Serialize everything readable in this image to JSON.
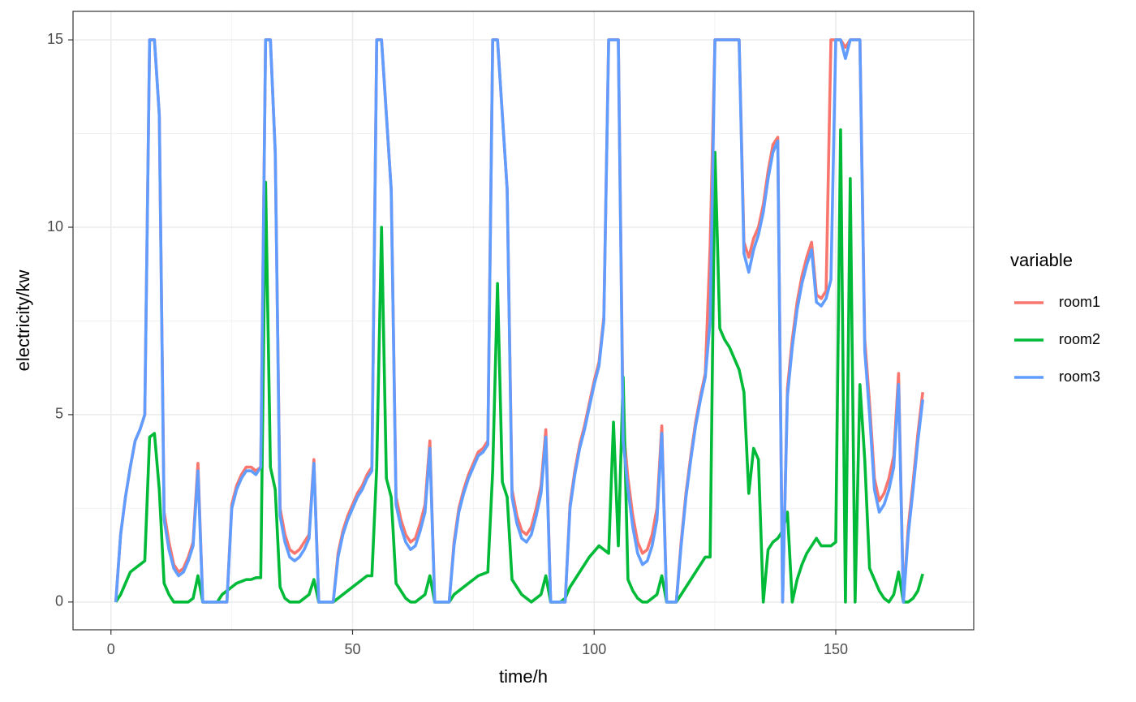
{
  "chart_data": {
    "type": "line",
    "x_label": "time/h",
    "y_label": "electricity/kw",
    "legend_title": "variable",
    "xlim": [
      -7.85,
      178.55
    ],
    "ylim": [
      -0.74,
      15.76
    ],
    "xticks": [
      0,
      50,
      100,
      150
    ],
    "yticks": [
      0,
      5,
      10,
      15
    ],
    "xminor": [
      25,
      75,
      125
    ],
    "yminor": [
      2.5,
      7.5,
      12.5
    ],
    "grid": true,
    "legend": "right",
    "x": [
      1,
      2,
      3,
      4,
      5,
      6,
      7,
      8,
      9,
      10,
      11,
      12,
      13,
      14,
      15,
      16,
      17,
      18,
      19,
      20,
      21,
      22,
      23,
      24,
      25,
      26,
      27,
      28,
      29,
      30,
      31,
      32,
      33,
      34,
      35,
      36,
      37,
      38,
      39,
      40,
      41,
      42,
      43,
      44,
      45,
      46,
      47,
      48,
      49,
      50,
      51,
      52,
      53,
      54,
      55,
      56,
      57,
      58,
      59,
      60,
      61,
      62,
      63,
      64,
      65,
      66,
      67,
      68,
      69,
      70,
      71,
      72,
      73,
      74,
      75,
      76,
      77,
      78,
      79,
      80,
      81,
      82,
      83,
      84,
      85,
      86,
      87,
      88,
      89,
      90,
      91,
      92,
      93,
      94,
      95,
      96,
      97,
      98,
      99,
      100,
      101,
      102,
      103,
      104,
      105,
      106,
      107,
      108,
      109,
      110,
      111,
      112,
      113,
      114,
      115,
      116,
      117,
      118,
      119,
      120,
      121,
      122,
      123,
      124,
      125,
      126,
      127,
      128,
      129,
      130,
      131,
      132,
      133,
      134,
      135,
      136,
      137,
      138,
      139,
      140,
      141,
      142,
      143,
      144,
      145,
      146,
      147,
      148,
      149,
      150,
      151,
      152,
      153,
      154,
      155,
      156,
      157,
      158,
      159,
      160,
      161,
      162,
      163,
      164,
      165,
      166,
      167,
      168
    ],
    "series": [
      {
        "name": "room1",
        "color": "#F8766D",
        "values": [
          0,
          1.8,
          2.8,
          3.6,
          4.3,
          4.6,
          5.0,
          15,
          15,
          13,
          2.4,
          1.6,
          1.0,
          0.8,
          0.9,
          1.2,
          1.6,
          3.7,
          0,
          0,
          0,
          0,
          0,
          0,
          2.6,
          3.1,
          3.4,
          3.6,
          3.6,
          3.5,
          3.6,
          15,
          15,
          12,
          2.5,
          1.8,
          1.4,
          1.3,
          1.4,
          1.6,
          1.8,
          3.8,
          0,
          0,
          0,
          0,
          1.3,
          1.9,
          2.3,
          2.6,
          2.9,
          3.1,
          3.4,
          3.6,
          15,
          15,
          13,
          11,
          2.8,
          2.2,
          1.8,
          1.6,
          1.7,
          2.1,
          2.6,
          4.3,
          0,
          0,
          0,
          0,
          1.6,
          2.5,
          3.0,
          3.4,
          3.7,
          4.0,
          4.1,
          4.3,
          15,
          15,
          13,
          11,
          3.0,
          2.3,
          1.9,
          1.8,
          2.0,
          2.5,
          3.1,
          4.6,
          0,
          0,
          0,
          0,
          2.6,
          3.5,
          4.2,
          4.7,
          5.3,
          5.9,
          6.4,
          7.6,
          15,
          15,
          15,
          4.7,
          3.3,
          2.3,
          1.6,
          1.3,
          1.4,
          1.8,
          2.5,
          4.7,
          0,
          0,
          0,
          1.6,
          2.9,
          3.9,
          4.8,
          5.5,
          6.1,
          9.5,
          15,
          15,
          15,
          15,
          15,
          15,
          9.6,
          9.2,
          9.7,
          10.0,
          10.6,
          11.5,
          12.2,
          12.4,
          0,
          5.7,
          7.0,
          8.0,
          8.7,
          9.2,
          9.6,
          8.2,
          8.1,
          8.3,
          15,
          15,
          15,
          14.8,
          15,
          15,
          15,
          7.0,
          5.3,
          3.3,
          2.7,
          2.9,
          3.3,
          3.9,
          6.1,
          0,
          2.0,
          3.2,
          4.5,
          5.6
        ]
      },
      {
        "name": "room2",
        "color": "#00BA38",
        "values": [
          0,
          0.2,
          0.5,
          0.8,
          0.9,
          1.0,
          1.1,
          4.4,
          4.5,
          3.0,
          0.5,
          0.2,
          0,
          0,
          0,
          0,
          0.1,
          0.7,
          0,
          0,
          0,
          0,
          0.2,
          0.3,
          0.4,
          0.5,
          0.55,
          0.6,
          0.6,
          0.65,
          0.65,
          11.2,
          3.6,
          3.0,
          0.4,
          0.1,
          0,
          0,
          0,
          0.1,
          0.2,
          0.6,
          0,
          0,
          0,
          0,
          0.1,
          0.2,
          0.3,
          0.4,
          0.5,
          0.6,
          0.7,
          0.7,
          3.6,
          10,
          3.3,
          2.8,
          0.5,
          0.3,
          0.1,
          0,
          0,
          0.1,
          0.2,
          0.7,
          0,
          0,
          0,
          0,
          0.2,
          0.3,
          0.4,
          0.5,
          0.6,
          0.7,
          0.75,
          0.8,
          3.5,
          8.5,
          3.2,
          2.8,
          0.6,
          0.4,
          0.2,
          0.1,
          0,
          0.1,
          0.2,
          0.7,
          0,
          0,
          0,
          0.1,
          0.4,
          0.6,
          0.8,
          1.0,
          1.2,
          1.35,
          1.5,
          1.4,
          1.3,
          4.8,
          1.5,
          6.0,
          0.6,
          0.3,
          0.1,
          0,
          0,
          0.1,
          0.2,
          0.7,
          0,
          0,
          0,
          0.2,
          0.4,
          0.6,
          0.8,
          1.0,
          1.2,
          1.2,
          12.0,
          7.3,
          7.0,
          6.8,
          6.5,
          6.2,
          5.6,
          2.9,
          4.1,
          3.8,
          0,
          1.4,
          1.6,
          1.7,
          1.9,
          2.4,
          0,
          0.6,
          1.0,
          1.3,
          1.5,
          1.7,
          1.5,
          1.5,
          1.5,
          1.6,
          12.6,
          0,
          11.3,
          0,
          5.8,
          3.8,
          0.9,
          0.6,
          0.3,
          0.1,
          0,
          0.2,
          0.8,
          0,
          0,
          0.1,
          0.3,
          0.75
        ]
      },
      {
        "name": "room3",
        "color": "#619CFF",
        "values": [
          0,
          1.8,
          2.8,
          3.6,
          4.3,
          4.6,
          5.0,
          15,
          15,
          13,
          2.2,
          1.4,
          0.9,
          0.7,
          0.8,
          1.1,
          1.5,
          3.5,
          0,
          0,
          0,
          0,
          0,
          0,
          2.5,
          3.0,
          3.3,
          3.5,
          3.5,
          3.4,
          3.6,
          15,
          15,
          12,
          2.3,
          1.6,
          1.2,
          1.1,
          1.2,
          1.4,
          1.7,
          3.7,
          0,
          0,
          0,
          0,
          1.2,
          1.8,
          2.2,
          2.5,
          2.8,
          3.0,
          3.3,
          3.5,
          15,
          15,
          13,
          11,
          2.6,
          2.0,
          1.6,
          1.4,
          1.5,
          1.9,
          2.4,
          4.1,
          0,
          0,
          0,
          0,
          1.5,
          2.4,
          2.9,
          3.3,
          3.6,
          3.9,
          4.0,
          4.2,
          15,
          15,
          13,
          11,
          2.8,
          2.1,
          1.7,
          1.6,
          1.8,
          2.3,
          2.9,
          4.4,
          0,
          0,
          0,
          0,
          2.5,
          3.4,
          4.1,
          4.6,
          5.2,
          5.8,
          6.3,
          7.5,
          15,
          15,
          15,
          4.3,
          3.0,
          2.0,
          1.3,
          1.0,
          1.1,
          1.5,
          2.2,
          4.5,
          0,
          0,
          0,
          1.5,
          2.8,
          3.8,
          4.7,
          5.4,
          6.0,
          7.5,
          15,
          15,
          15,
          15,
          15,
          15,
          9.3,
          8.8,
          9.4,
          9.8,
          10.4,
          11.3,
          12.0,
          12.3,
          0,
          5.5,
          6.8,
          7.8,
          8.5,
          9.0,
          9.4,
          8.0,
          7.9,
          8.1,
          8.6,
          15,
          15,
          14.5,
          15,
          15,
          15,
          6.7,
          5.0,
          3.0,
          2.4,
          2.6,
          3.0,
          3.6,
          5.8,
          0,
          1.8,
          3.0,
          4.3,
          5.4
        ]
      }
    ]
  }
}
